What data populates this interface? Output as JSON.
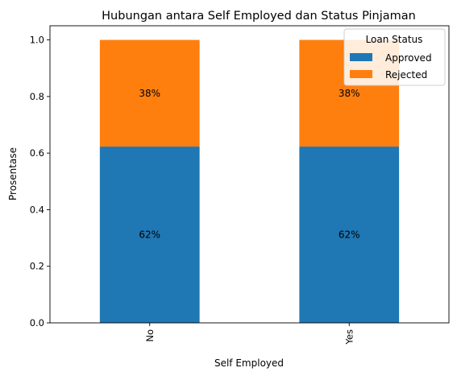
{
  "chart_data": {
    "type": "bar",
    "stacked": true,
    "title": "Hubungan antara Self Employed dan Status Pinjaman",
    "xlabel": "Self Employed",
    "ylabel": "Prosentase",
    "categories": [
      "No",
      "Yes"
    ],
    "ylim": [
      0,
      1.05
    ],
    "yticks": [
      "0.0",
      "0.2",
      "0.4",
      "0.6",
      "0.8",
      "1.0"
    ],
    "grid": false,
    "legend": {
      "title": "Loan Status",
      "placement": "top-right"
    },
    "series": [
      {
        "name": "Approved",
        "color": "#1f77b4",
        "values": [
          0.623,
          0.623
        ],
        "labels": [
          "62%",
          "62%"
        ]
      },
      {
        "name": "Rejected",
        "color": "#ff7f0e",
        "values": [
          0.377,
          0.377
        ],
        "labels": [
          "38%",
          "38%"
        ]
      }
    ]
  }
}
